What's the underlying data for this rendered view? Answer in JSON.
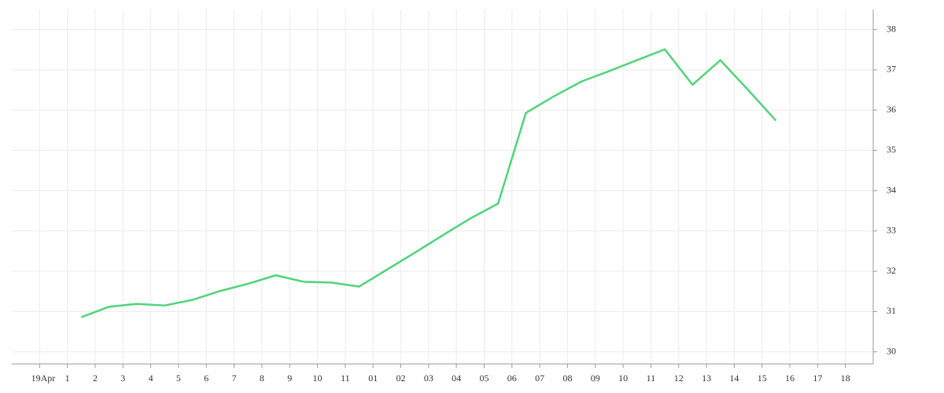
{
  "chart_data": {
    "type": "line",
    "x": [
      1.5,
      2.5,
      3.5,
      4.5,
      5.5,
      6.5,
      7.5,
      8.5,
      9.5,
      10.5,
      11.5,
      12.5,
      13.5,
      14.5,
      15.5,
      16.5,
      17.5,
      18.5,
      19.5,
      20.5,
      21.5,
      22.5,
      23.5,
      24.5,
      25.5,
      26.5
    ],
    "series": [
      {
        "color": "#4fd47a",
        "values": [
          30.86,
          31.12,
          31.19,
          31.15,
          31.29,
          31.51,
          31.69,
          31.9,
          31.74,
          31.72,
          31.62,
          32.04,
          32.46,
          32.89,
          33.31,
          33.68,
          35.93,
          36.34,
          36.71,
          36.97,
          37.24,
          37.51,
          36.63,
          37.24,
          36.5,
          35.74
        ]
      }
    ],
    "xlim": [
      -1,
      30
    ],
    "xticks": [
      {
        "value": 0,
        "label": "19Apr"
      },
      1,
      2,
      3,
      4,
      5,
      6,
      7,
      8,
      9,
      10,
      11,
      {
        "value": 12,
        "label": "01"
      },
      {
        "value": 13,
        "label": "02"
      },
      {
        "value": 14,
        "label": "03"
      },
      {
        "value": 15,
        "label": "04"
      },
      {
        "value": 16,
        "label": "05"
      },
      {
        "value": 17,
        "label": "06"
      },
      {
        "value": 18,
        "label": "07"
      },
      {
        "value": 19,
        "label": "08"
      },
      {
        "value": 20,
        "label": "09"
      },
      {
        "value": 21,
        "label": "10"
      },
      {
        "value": 22,
        "label": "11"
      },
      {
        "value": 23,
        "label": "12"
      },
      {
        "value": 24,
        "label": "13"
      },
      {
        "value": 25,
        "label": "14"
      },
      {
        "value": 26,
        "label": "15"
      },
      {
        "value": 27,
        "label": "16"
      },
      {
        "value": 28,
        "label": "17"
      },
      {
        "value": 29,
        "label": "18"
      }
    ],
    "xtick_labels_offset": 19,
    "ylim": [
      29.7,
      38.5
    ],
    "yticks": [
      30,
      31,
      32,
      33,
      34,
      35,
      36,
      37,
      38
    ],
    "grid": true
  }
}
